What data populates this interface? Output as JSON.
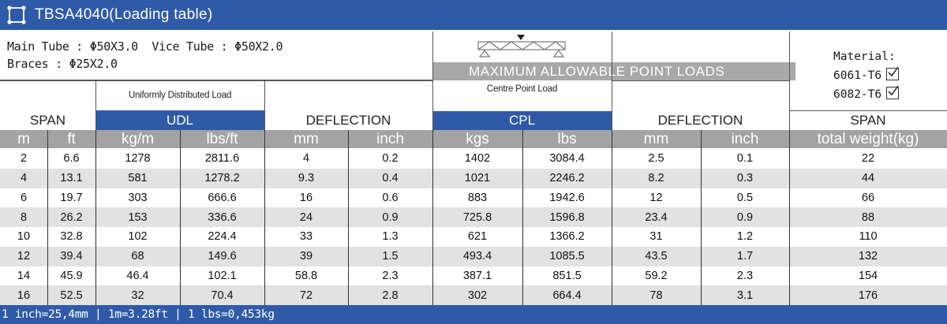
{
  "title": "TBSA4040(Loading table)",
  "specs": {
    "line1": "Main Tube : Φ50X3.0  Vice Tube : Φ50X2.0",
    "line2": "Braces : Φ25X2.0"
  },
  "banner": "MAXIMUM ALLOWABLE POINT LOADS",
  "material": {
    "label": "Material:",
    "options": [
      "6061-T6",
      "6082-T6"
    ]
  },
  "headers": {
    "span": "SPAN",
    "udl_desc": "Uniformly Distributed Load",
    "udl": "UDL",
    "deflection_udl": "DEFLECTION",
    "cpl_desc": "Centre Point Load",
    "cpl": "CPL",
    "deflection_cpl": "DEFLECTION",
    "span_right": "SPAN"
  },
  "units": [
    "m",
    "ft",
    "kg/m",
    "lbs/ft",
    "mm",
    "inch",
    "kgs",
    "lbs",
    "mm",
    "inch",
    "total weight(kg)"
  ],
  "rows": [
    [
      "2",
      "6.6",
      "1278",
      "2811.6",
      "4",
      "0.2",
      "1402",
      "3084.4",
      "2.5",
      "0.1",
      "22"
    ],
    [
      "4",
      "13.1",
      "581",
      "1278.2",
      "9.3",
      "0.4",
      "1021",
      "2246.2",
      "8.2",
      "0.3",
      "44"
    ],
    [
      "6",
      "19.7",
      "303",
      "666.6",
      "16",
      "0.6",
      "883",
      "1942.6",
      "12",
      "0.5",
      "66"
    ],
    [
      "8",
      "26.2",
      "153",
      "336.6",
      "24",
      "0.9",
      "725.8",
      "1596.8",
      "23.4",
      "0.9",
      "88"
    ],
    [
      "10",
      "32.8",
      "102",
      "224.4",
      "33",
      "1.3",
      "621",
      "1366.2",
      "31",
      "1.2",
      "110"
    ],
    [
      "12",
      "39.4",
      "68",
      "149.6",
      "39",
      "1.5",
      "493.4",
      "1085.5",
      "43.5",
      "1.7",
      "132"
    ],
    [
      "14",
      "45.9",
      "46.4",
      "102.1",
      "58.8",
      "2.3",
      "387.1",
      "851.5",
      "59.2",
      "2.3",
      "154"
    ],
    [
      "16",
      "52.5",
      "32",
      "70.4",
      "72",
      "2.8",
      "302",
      "664.4",
      "78",
      "3.1",
      "176"
    ]
  ],
  "footer": "1 inch=25,4mm | 1m=3.28ft | 1 lbs=0,453kg",
  "colors": {
    "brand_blue": "#2f5aa8",
    "unit_grey": "#a3a3a3",
    "row_grey": "#e2e2e2"
  }
}
